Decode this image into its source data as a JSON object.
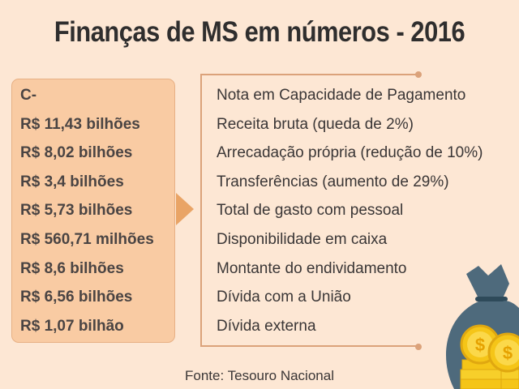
{
  "title": "Finanças de MS em números - 2016",
  "values": [
    "C-",
    "R$ 11,43 bilhões",
    "R$ 8,02 bilhões",
    "R$ 3,4 bilhões",
    "R$ 5,73 bilhões",
    "R$ 560,71 milhões",
    "R$ 8,6 bilhões",
    "R$ 6,56 bilhões",
    "R$ 1,07 bilhão"
  ],
  "labels": [
    "Nota em Capacidade de Pagamento",
    "Receita bruta (queda de 2%)",
    "Arrecadação própria (redução de 10%)",
    "Transferências (aumento de 29%)",
    "Total de gasto com pessoal",
    "Disponibilidade em caixa",
    "Montante do endividamento",
    "Dívida com a União",
    "Dívida externa"
  ],
  "source": "Fonte: Tesouro Nacional",
  "colors": {
    "background": "#fde7d4",
    "box": "#f9cba3",
    "accent": "#e9a466",
    "bag": "#4e6a7c",
    "coin": "#f5c518"
  }
}
